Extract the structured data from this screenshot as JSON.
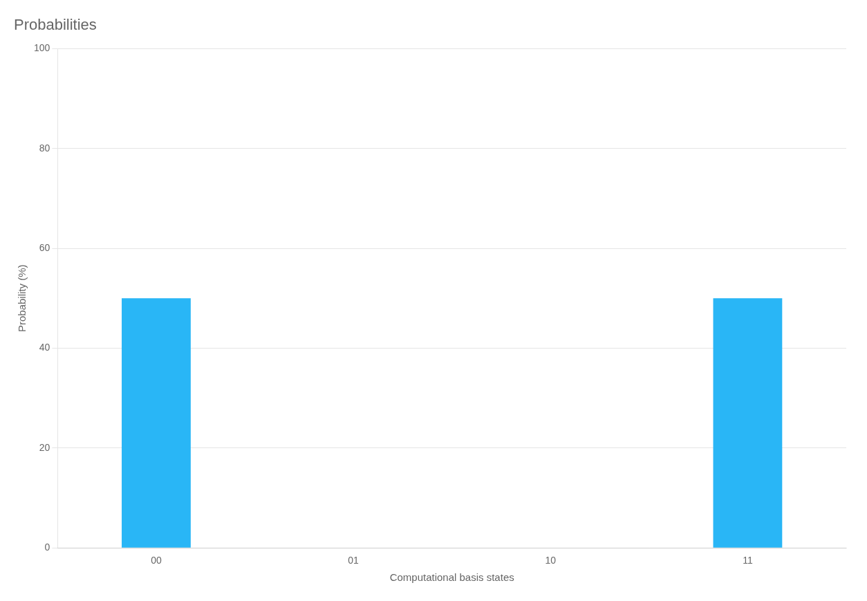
{
  "chart_data": {
    "type": "bar",
    "title": "Probabilities",
    "categories": [
      "00",
      "01",
      "10",
      "11"
    ],
    "values": [
      50,
      0,
      0,
      50
    ],
    "color": "#29b6f6",
    "xlabel": "Computational basis states",
    "ylabel": "Probability (%)",
    "ylim": [
      0,
      100
    ],
    "yticks": [
      0,
      20,
      40,
      60,
      80,
      100
    ],
    "grid": true
  }
}
